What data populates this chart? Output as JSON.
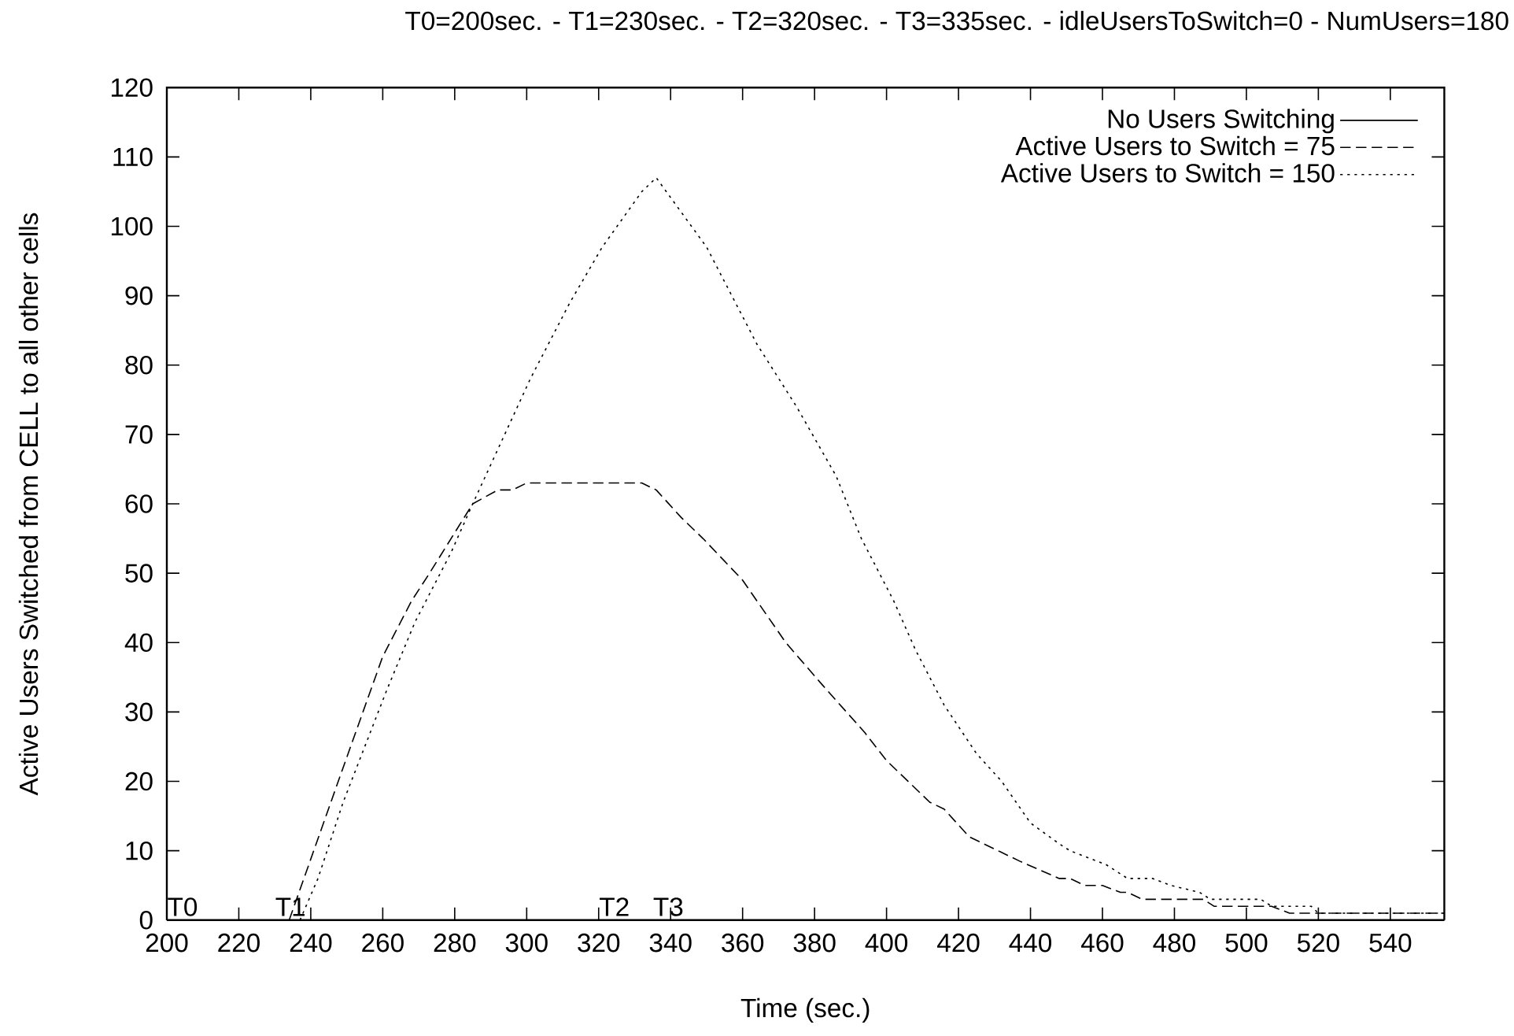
{
  "chart_data": {
    "type": "line",
    "title": "T0=200sec. - T1=230sec. - T2=320sec. - T3=335sec. - idleUsersToSwitch=0 - NumUsers=180",
    "xlabel": "Time (sec.)",
    "ylabel": "Active Users Switched from CELL to all other cells",
    "xlim": [
      200,
      555
    ],
    "ylim": [
      0,
      120
    ],
    "xticks": [
      200,
      220,
      240,
      260,
      280,
      300,
      320,
      340,
      360,
      380,
      400,
      420,
      440,
      460,
      480,
      500,
      520,
      540
    ],
    "yticks": [
      0,
      10,
      20,
      30,
      40,
      50,
      60,
      70,
      80,
      90,
      100,
      110,
      120
    ],
    "grid": false,
    "legend": "top right",
    "marker": "none",
    "series": [
      {
        "name": "No Users Switching",
        "color": "#000000",
        "line_style": "solid",
        "x": [
          200,
          555
        ],
        "values": [
          0,
          0
        ]
      },
      {
        "name": "Active Users to Switch = 75",
        "color": "#000000",
        "line_style": "dashed",
        "x": [
          234,
          249,
          260,
          268,
          273,
          285,
          292,
          296,
          300,
          332,
          336,
          343,
          349,
          360,
          372,
          382,
          394,
          400,
          412,
          416,
          423,
          437,
          448,
          451,
          455,
          460,
          465,
          467,
          471,
          488,
          491,
          507,
          512,
          555
        ],
        "values": [
          0,
          22,
          38,
          46,
          50,
          60,
          62,
          62,
          63,
          63,
          62,
          58,
          55,
          49,
          40,
          34,
          27,
          23,
          17,
          16,
          12,
          8.5,
          6,
          6,
          5,
          5,
          4,
          4,
          3,
          3,
          2,
          2,
          1,
          1
        ]
      },
      {
        "name": "Active Users to Switch = 150",
        "color": "#000000",
        "line_style": "dotted",
        "x": [
          237,
          242,
          249,
          261,
          269,
          279,
          285,
          293,
          301,
          312,
          321,
          332,
          336,
          350,
          364,
          375,
          386,
          393,
          402,
          408,
          416,
          425,
          432,
          440,
          448,
          451,
          461,
          467,
          474,
          479,
          487,
          490,
          504,
          507,
          518,
          520,
          555
        ],
        "values": [
          0,
          6,
          17,
          33,
          43,
          53,
          60,
          69,
          78,
          89,
          97,
          105,
          107,
          97,
          83,
          74,
          64,
          55,
          46,
          39,
          31,
          24,
          20,
          14,
          11,
          10,
          8,
          6,
          6,
          5,
          4,
          3,
          3,
          2,
          2,
          1,
          1
        ]
      }
    ],
    "annotations": [
      {
        "text": "T0",
        "x": 200,
        "y": 0
      },
      {
        "text": "T1",
        "x": 230,
        "y": 0
      },
      {
        "text": "T2",
        "x": 320,
        "y": 0
      },
      {
        "text": "T3",
        "x": 335,
        "y": 0
      }
    ]
  }
}
